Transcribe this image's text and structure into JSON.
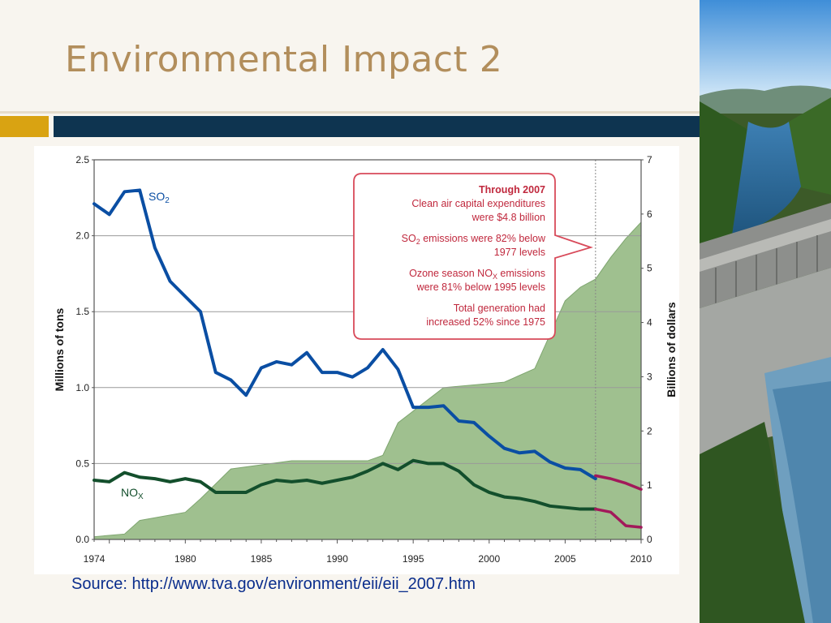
{
  "title": "Environmental Impact 2",
  "source": "Source: http://www.tva.gov/environment/eii/eii_2007.htm",
  "colors": {
    "title": "#b28e5c",
    "accent_gold": "#d9a312",
    "accent_navy": "#0e3450",
    "so2": "#0a4ea3",
    "nox": "#134f2c",
    "projection": "#a2195a",
    "capex_fill": "#9fc08f",
    "callout_border": "#d84a5a",
    "callout_text": "#c0283d"
  },
  "chart_data": {
    "type": "line",
    "title": "",
    "ylabel": "Millions of tons",
    "y2label": "Billions of dollars",
    "xlim": [
      1974,
      2010
    ],
    "ylim": [
      0,
      2.5
    ],
    "y2lim": [
      0,
      7
    ],
    "x_ticks": [
      "1974",
      "1980",
      "1985",
      "1990",
      "1995",
      "2000",
      "2005",
      "2010"
    ],
    "y_ticks": [
      "0.0",
      "0.5",
      "1.0",
      "1.5",
      "2.0",
      "2.5"
    ],
    "y2_ticks": [
      "0",
      "1",
      "2",
      "3",
      "4",
      "5",
      "6",
      "7"
    ],
    "series": [
      {
        "name": "SO2",
        "label_main": "SO",
        "label_sub": "2",
        "x": [
          1974,
          1975,
          1976,
          1977,
          1978,
          1979,
          1980,
          1981,
          1982,
          1983,
          1984,
          1985,
          1986,
          1987,
          1988,
          1989,
          1990,
          1991,
          1992,
          1993,
          1994,
          1995,
          1996,
          1997,
          1998,
          1999,
          2000,
          2001,
          2002,
          2003,
          2004,
          2005,
          2006,
          2007
        ],
        "values": [
          2.21,
          2.14,
          2.29,
          2.3,
          1.92,
          1.7,
          1.6,
          1.5,
          1.1,
          1.05,
          0.95,
          1.13,
          1.17,
          1.15,
          1.23,
          1.1,
          1.1,
          1.07,
          1.13,
          1.25,
          1.12,
          0.87,
          0.87,
          0.88,
          0.78,
          0.77,
          0.68,
          0.6,
          0.57,
          0.58,
          0.51,
          0.47,
          0.46,
          0.4
        ]
      },
      {
        "name": "NOx",
        "label_main": "NO",
        "label_sub": "X",
        "x": [
          1974,
          1975,
          1976,
          1977,
          1978,
          1979,
          1980,
          1981,
          1982,
          1983,
          1984,
          1985,
          1986,
          1987,
          1988,
          1989,
          1990,
          1991,
          1992,
          1993,
          1994,
          1995,
          1996,
          1997,
          1998,
          1999,
          2000,
          2001,
          2002,
          2003,
          2004,
          2005,
          2006,
          2007
        ],
        "values": [
          0.39,
          0.38,
          0.44,
          0.41,
          0.4,
          0.38,
          0.4,
          0.38,
          0.31,
          0.31,
          0.31,
          0.36,
          0.39,
          0.38,
          0.39,
          0.37,
          0.39,
          0.41,
          0.45,
          0.5,
          0.46,
          0.52,
          0.5,
          0.5,
          0.45,
          0.36,
          0.31,
          0.28,
          0.27,
          0.25,
          0.22,
          0.21,
          0.2,
          0.2
        ]
      },
      {
        "name": "SO2 projection",
        "x": [
          2007,
          2008,
          2009,
          2010
        ],
        "values": [
          0.42,
          0.4,
          0.37,
          0.33
        ]
      },
      {
        "name": "NOx projection",
        "x": [
          2007,
          2008,
          2009,
          2010
        ],
        "values": [
          0.2,
          0.18,
          0.09,
          0.08
        ]
      },
      {
        "name": "Clean air capital expenditures",
        "axis": "right",
        "type": "area",
        "x": [
          1974,
          1976,
          1977,
          1980,
          1981,
          1983,
          1987,
          1992,
          1993,
          1994,
          1997,
          2001,
          2003,
          2005,
          2006,
          2007,
          2008,
          2009,
          2010
        ],
        "values": [
          0.05,
          0.1,
          0.35,
          0.5,
          0.75,
          1.3,
          1.45,
          1.45,
          1.55,
          2.15,
          2.8,
          2.9,
          3.15,
          4.4,
          4.65,
          4.8,
          5.2,
          5.55,
          5.85
        ]
      }
    ],
    "callout": [
      {
        "text": "Through 2007",
        "bold": true
      },
      {
        "text": "Clean air capital expenditures"
      },
      {
        "text": "were $4.8 billion"
      },
      {
        "text": "SO",
        "sub": "2",
        "tail": " emissions were 82% below"
      },
      {
        "text": "1977 levels"
      },
      {
        "text": "Ozone season NO",
        "sub": "X",
        "tail": " emissions"
      },
      {
        "text": "were 81% below 1995 levels"
      },
      {
        "text": "Total generation had"
      },
      {
        "text": "increased 52% since 1975"
      }
    ]
  }
}
